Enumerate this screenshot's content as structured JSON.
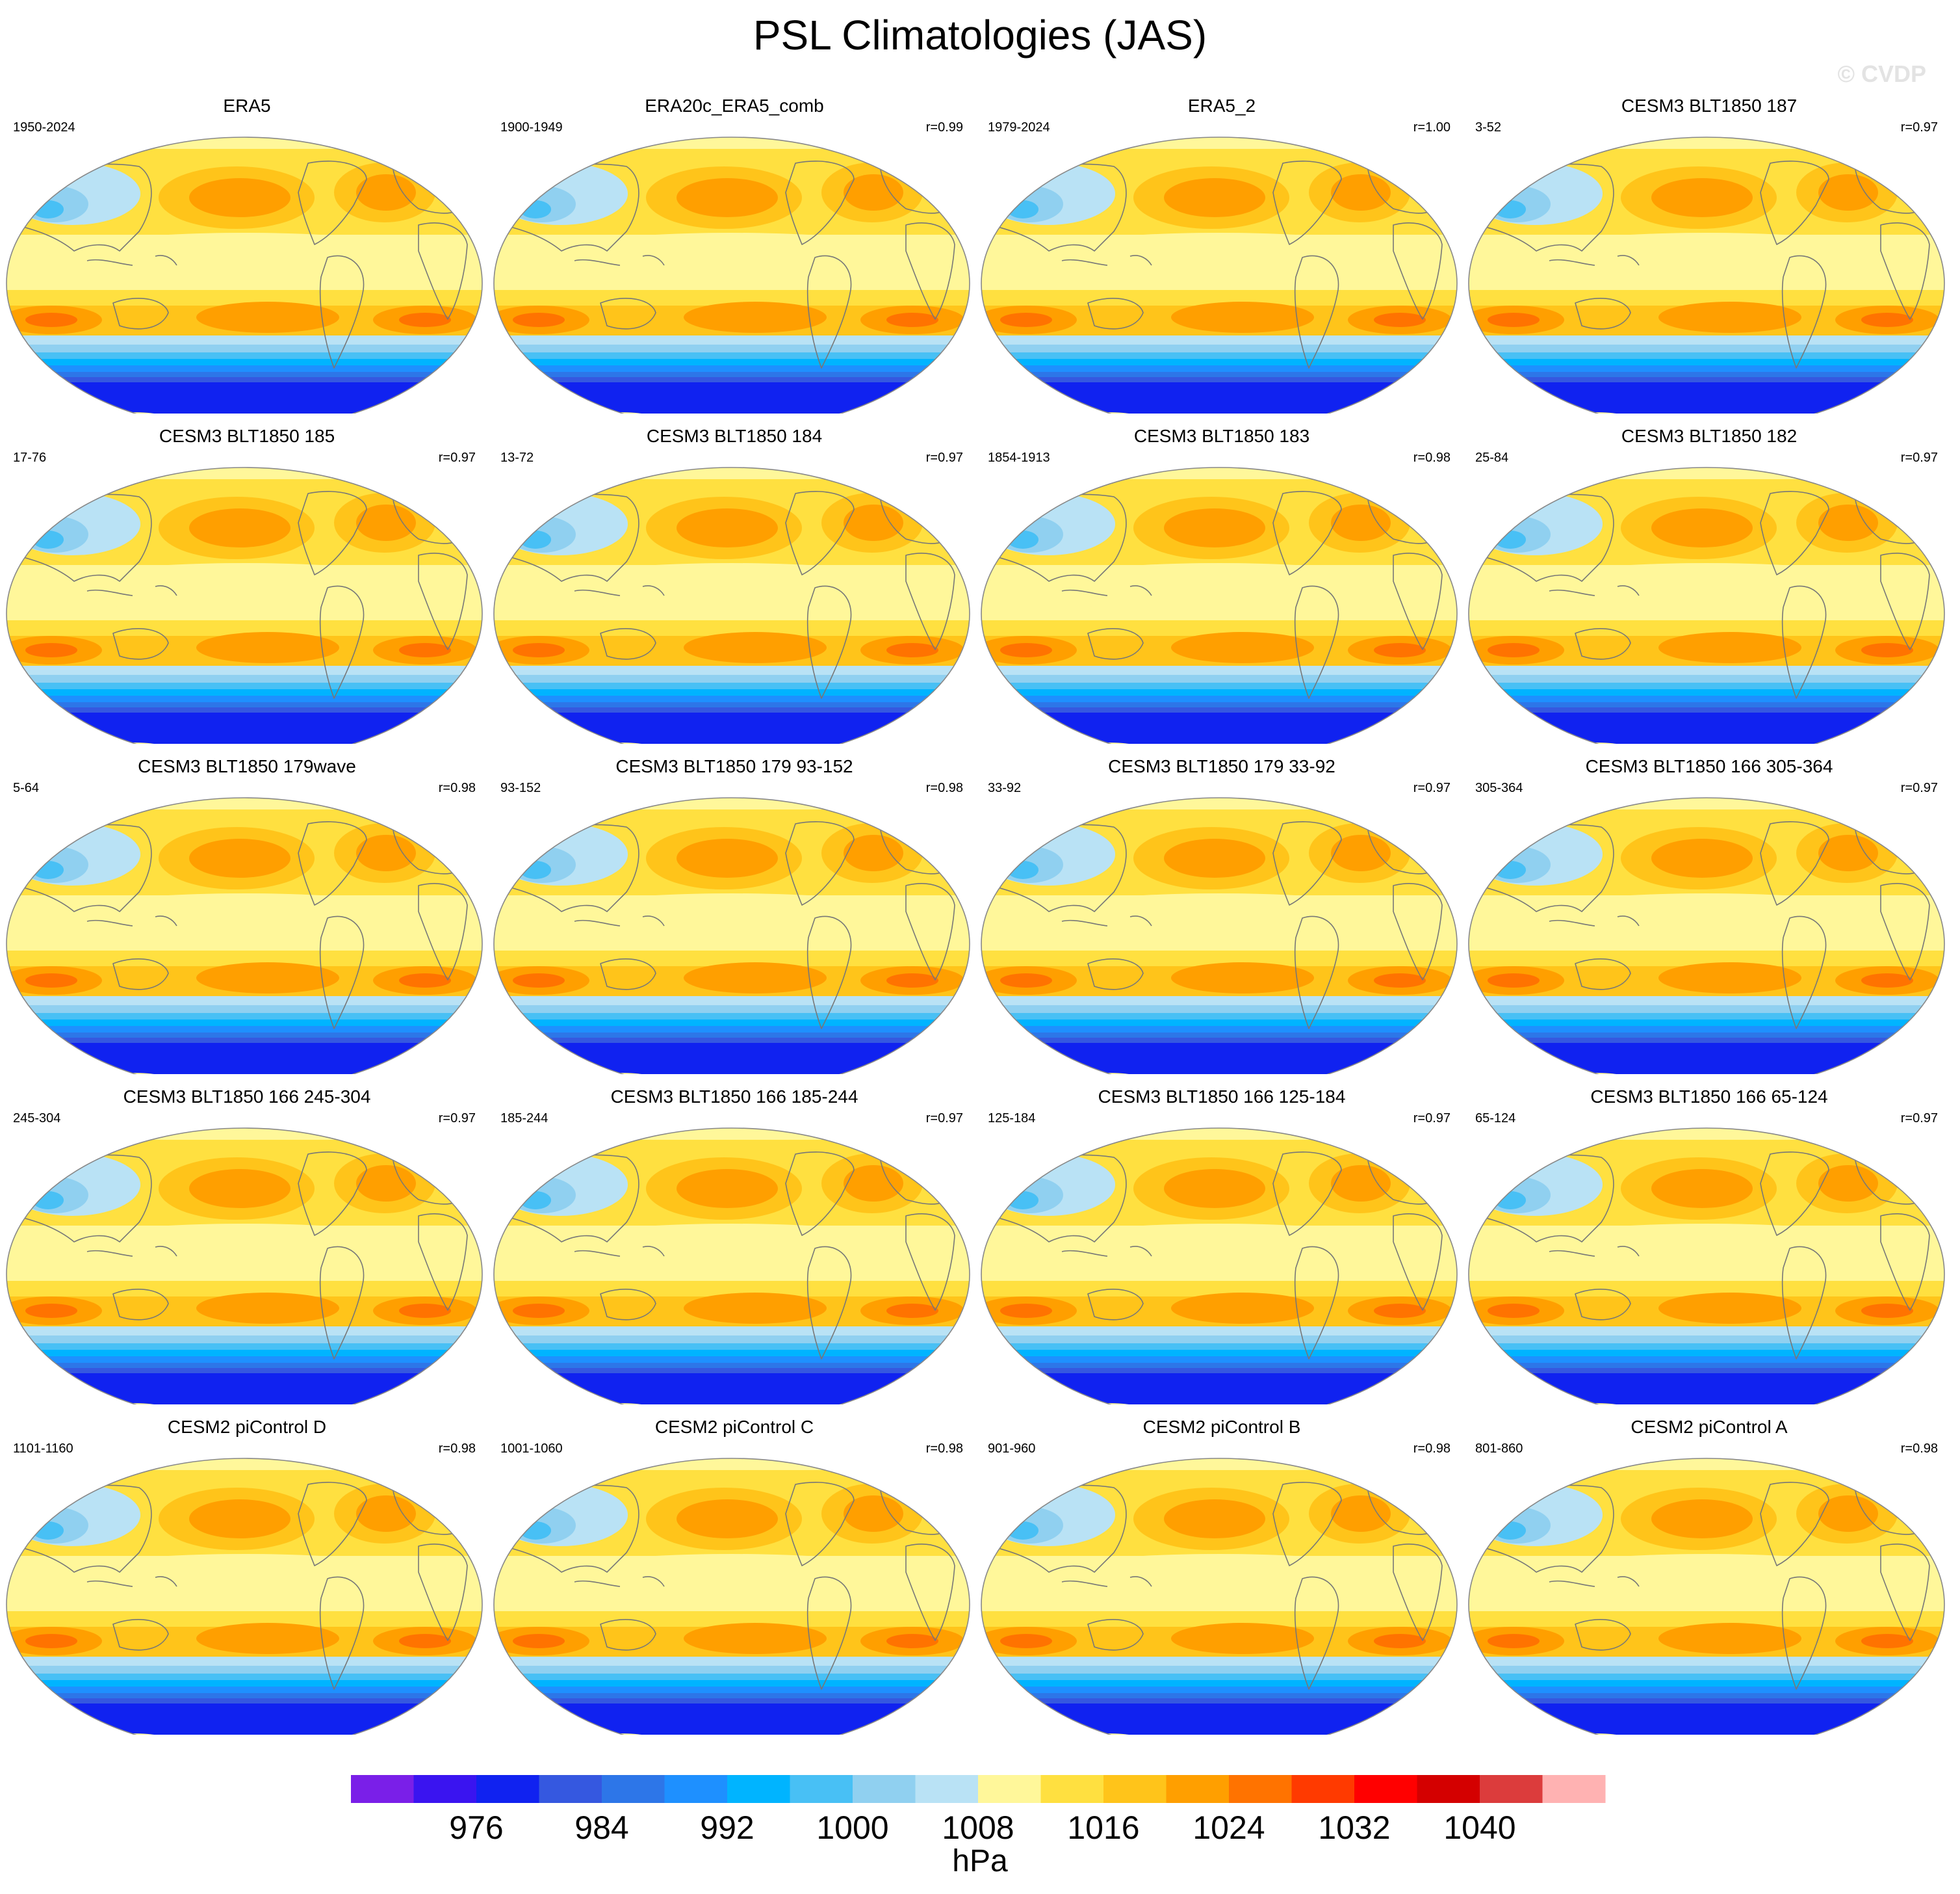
{
  "title": "PSL Climatologies (JAS)",
  "watermark": "© CVDP",
  "chart_data": {
    "type": "heatmap",
    "projection": "Robinson (global, Pacific-centered)",
    "variable": "PSL",
    "season": "JAS",
    "units": "hPa",
    "panels": [
      {
        "title": "ERA5",
        "years": "1950-2024",
        "r": ""
      },
      {
        "title": "ERA20c_ERA5_comb",
        "years": "1900-1949",
        "r": "r=0.99"
      },
      {
        "title": "ERA5_2",
        "years": "1979-2024",
        "r": "r=1.00"
      },
      {
        "title": "CESM3 BLT1850 187",
        "years": "3-52",
        "r": "r=0.97"
      },
      {
        "title": "CESM3 BLT1850 185",
        "years": "17-76",
        "r": "r=0.97"
      },
      {
        "title": "CESM3 BLT1850 184",
        "years": "13-72",
        "r": "r=0.97"
      },
      {
        "title": "CESM3 BLT1850 183",
        "years": "1854-1913",
        "r": "r=0.98"
      },
      {
        "title": "CESM3 BLT1850 182",
        "years": "25-84",
        "r": "r=0.97"
      },
      {
        "title": "CESM3 BLT1850 179wave",
        "years": "5-64",
        "r": "r=0.98"
      },
      {
        "title": "CESM3 BLT1850 179 93-152",
        "years": "93-152",
        "r": "r=0.98"
      },
      {
        "title": "CESM3 BLT1850 179 33-92",
        "years": "33-92",
        "r": "r=0.97"
      },
      {
        "title": "CESM3 BLT1850 166 305-364",
        "years": "305-364",
        "r": "r=0.97"
      },
      {
        "title": "CESM3 BLT1850 166 245-304",
        "years": "245-304",
        "r": "r=0.97"
      },
      {
        "title": "CESM3 BLT1850 166 185-244",
        "years": "185-244",
        "r": "r=0.97"
      },
      {
        "title": "CESM3 BLT1850 166 125-184",
        "years": "125-184",
        "r": "r=0.97"
      },
      {
        "title": "CESM3 BLT1850 166 65-124",
        "years": "65-124",
        "r": "r=0.97"
      },
      {
        "title": "CESM2 piControl D",
        "years": "1101-1160",
        "r": "r=0.98"
      },
      {
        "title": "CESM2 piControl C",
        "years": "1001-1060",
        "r": "r=0.98"
      },
      {
        "title": "CESM2 piControl B",
        "years": "901-960",
        "r": "r=0.98"
      },
      {
        "title": "CESM2 piControl A",
        "years": "801-860",
        "r": "r=0.98"
      }
    ],
    "colorbar": {
      "label": "hPa",
      "tick_values": [
        976,
        984,
        992,
        1000,
        1008,
        1016,
        1024,
        1032,
        1040
      ],
      "tick_labels": [
        "976",
        "984",
        "992",
        "1000",
        "1008",
        "1016",
        "1024",
        "1032",
        "1040"
      ],
      "levels": [
        972,
        976,
        980,
        984,
        988,
        992,
        996,
        1000,
        1004,
        1008,
        1012,
        1016,
        1020,
        1024,
        1028,
        1032,
        1036,
        1040,
        1044
      ],
      "colors": [
        "#7a1fe8",
        "#3a14f0",
        "#1022f0",
        "#3558e0",
        "#2d76e8",
        "#1e90ff",
        "#00b4ff",
        "#48c0f5",
        "#90d0f0",
        "#b9e2f5",
        "#fff79a",
        "#ffe040",
        "#ffc41a",
        "#ff9f00",
        "#ff7300",
        "#ff3a00",
        "#ff0000",
        "#d40000",
        "#dc3c3c",
        "#ffb2b2"
      ]
    }
  }
}
